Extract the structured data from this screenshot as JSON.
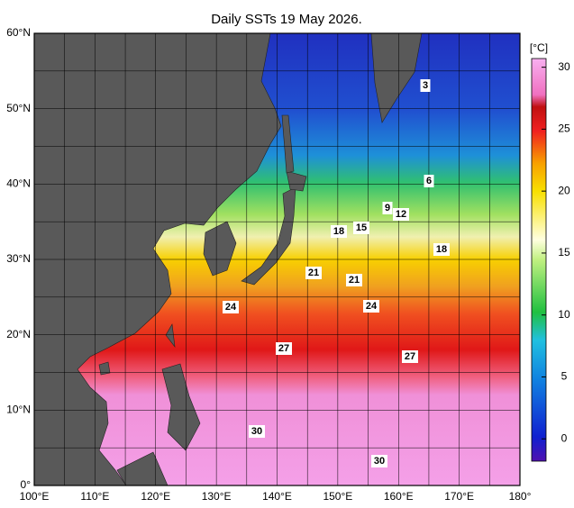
{
  "title": "Daily SSTs 19 May 2026.",
  "map": {
    "xlim": [
      100,
      180
    ],
    "ylim": [
      0,
      60
    ],
    "xticks": [
      {
        "value": 100,
        "label": "100°E"
      },
      {
        "value": 110,
        "label": "110°E"
      },
      {
        "value": 120,
        "label": "120°E"
      },
      {
        "value": 130,
        "label": "130°E"
      },
      {
        "value": 140,
        "label": "140°E"
      },
      {
        "value": 150,
        "label": "150°E"
      },
      {
        "value": 160,
        "label": "160°E"
      },
      {
        "value": 170,
        "label": "170°E"
      },
      {
        "value": 180,
        "label": "180°"
      }
    ],
    "yticks": [
      {
        "value": 0,
        "label": "0°"
      },
      {
        "value": 10,
        "label": "10°N"
      },
      {
        "value": 20,
        "label": "20°N"
      },
      {
        "value": 30,
        "label": "30°N"
      },
      {
        "value": 40,
        "label": "40°N"
      },
      {
        "value": 50,
        "label": "50°N"
      },
      {
        "value": 60,
        "label": "60°N"
      }
    ]
  },
  "colorbar": {
    "label": "[°C]",
    "lim": [
      -1.8,
      30.7
    ],
    "ticks": [
      0,
      5,
      10,
      15,
      20,
      25,
      30
    ]
  },
  "contour_labels": [
    3,
    6,
    9,
    12,
    18,
    15,
    18,
    21,
    21,
    24,
    24,
    27,
    27,
    30,
    30
  ]
}
